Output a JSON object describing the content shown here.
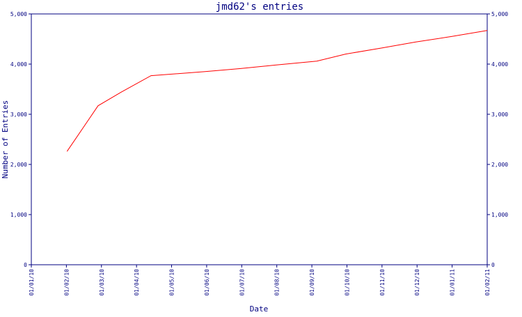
{
  "colors": {
    "axis": "#000080",
    "line": "#ff0000",
    "text": "#000080",
    "background": "#ffffff"
  },
  "chart_data": {
    "type": "line",
    "title": "jmd62's entries",
    "xlabel": "Date",
    "ylabel": "Number of Entries",
    "x_ticks": [
      "01/01/10",
      "01/02/10",
      "01/03/10",
      "01/04/10",
      "01/05/10",
      "01/06/10",
      "01/07/10",
      "01/08/10",
      "01/09/10",
      "01/10/10",
      "01/11/10",
      "01/12/10",
      "01/01/11",
      "01/02/11"
    ],
    "xlim": [
      "2010-01-01",
      "2011-02-01"
    ],
    "y_ticks": [
      "0",
      "1,000",
      "2,000",
      "3,000",
      "4,000",
      "5,000"
    ],
    "ylim": [
      0,
      5000
    ],
    "y_axis_mirrored_right": true,
    "grid": false,
    "series": [
      {
        "points": [
          {
            "x": "2010-02-01",
            "y": 2260
          },
          {
            "x": "2010-02-28",
            "y": 3170
          },
          {
            "x": "2010-03-20",
            "y": 3440
          },
          {
            "x": "2010-04-15",
            "y": 3770
          },
          {
            "x": "2010-06-01",
            "y": 3850
          },
          {
            "x": "2010-07-01",
            "y": 3910
          },
          {
            "x": "2010-08-01",
            "y": 3980
          },
          {
            "x": "2010-09-06",
            "y": 4060
          },
          {
            "x": "2010-10-01",
            "y": 4200
          },
          {
            "x": "2010-11-01",
            "y": 4320
          },
          {
            "x": "2010-12-01",
            "y": 4440
          },
          {
            "x": "2011-01-01",
            "y": 4550
          },
          {
            "x": "2011-02-01",
            "y": 4670
          }
        ]
      }
    ]
  }
}
